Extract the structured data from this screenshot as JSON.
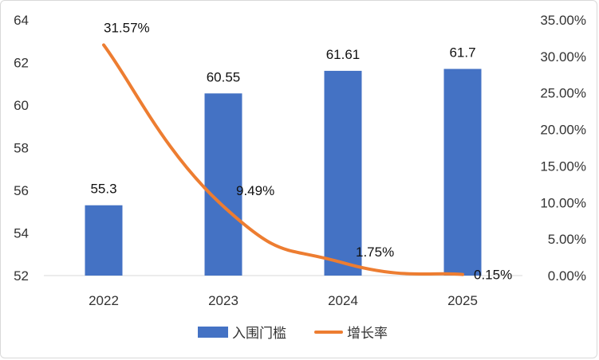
{
  "chart_data": {
    "type": "bar+line",
    "categories": [
      "2022",
      "2023",
      "2024",
      "2025"
    ],
    "series": [
      {
        "name": "入围门槛",
        "type": "bar",
        "axis": "left",
        "values": [
          55.3,
          60.55,
          61.61,
          61.7
        ],
        "labels": [
          "55.3",
          "60.55",
          "61.61",
          "61.7"
        ],
        "color": "#4472C4"
      },
      {
        "name": "增长率",
        "type": "line",
        "axis": "right",
        "values": [
          31.57,
          9.49,
          1.75,
          0.15
        ],
        "labels": [
          "31.57%",
          "9.49%",
          "1.75%",
          "0.15%"
        ],
        "color": "#ED7D31",
        "smooth": true
      }
    ],
    "y_left": {
      "range": [
        52,
        64
      ],
      "ticks": [
        "52",
        "54",
        "56",
        "58",
        "60",
        "62",
        "64"
      ]
    },
    "y_right": {
      "range": [
        0,
        35
      ],
      "ticks": [
        "0.00%",
        "5.00%",
        "10.00%",
        "15.00%",
        "20.00%",
        "25.00%",
        "30.00%",
        "35.00%"
      ]
    },
    "grid": false,
    "legend": "bottom"
  }
}
